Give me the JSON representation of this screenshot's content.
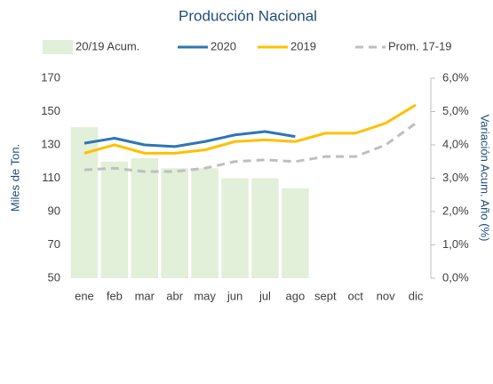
{
  "chart_data": {
    "type": "combo",
    "title": "Producción Nacional",
    "ylabel": "Miles de Ton.",
    "y2label": "Variación Acum. Año (%)",
    "categories": [
      "ene",
      "feb",
      "mar",
      "abr",
      "may",
      "jun",
      "jul",
      "ago",
      "sept",
      "oct",
      "nov",
      "dic"
    ],
    "ylim": [
      50,
      170
    ],
    "yticks": [
      50,
      70,
      90,
      110,
      130,
      150,
      170
    ],
    "y2lim": [
      0,
      6
    ],
    "y2ticks": [
      {
        "value": 0,
        "label": "0,0%"
      },
      {
        "value": 1,
        "label": "1,0%"
      },
      {
        "value": 2,
        "label": "2,0%"
      },
      {
        "value": 3,
        "label": "3,0%"
      },
      {
        "value": 4,
        "label": "4,0%"
      },
      {
        "value": 5,
        "label": "5,0%"
      },
      {
        "value": 6,
        "label": "6,0%"
      }
    ],
    "legend": "top",
    "series": [
      {
        "name": "20/19 Acum.",
        "type": "bar",
        "axis": "y2",
        "color": "#e2efd9",
        "values": [
          4.53,
          3.5,
          3.6,
          3.3,
          3.3,
          3.0,
          3.0,
          2.7,
          null,
          null,
          null,
          null
        ]
      },
      {
        "name": "2020",
        "type": "line",
        "color": "#2e75b6",
        "dash": false,
        "values": [
          131,
          134,
          130,
          129,
          132,
          136,
          138,
          135,
          null,
          null,
          null,
          null
        ]
      },
      {
        "name": "2019",
        "type": "line",
        "color": "#ffc000",
        "dash": false,
        "values": [
          125,
          130,
          125,
          125,
          127,
          132,
          133,
          132,
          137,
          137,
          143,
          154
        ]
      },
      {
        "name": "Prom. 17-19",
        "type": "line",
        "color": "#bfbfbf",
        "dash": true,
        "values": [
          115,
          116,
          114,
          114,
          116,
          120,
          121,
          120,
          123,
          123,
          130,
          143
        ]
      }
    ]
  }
}
